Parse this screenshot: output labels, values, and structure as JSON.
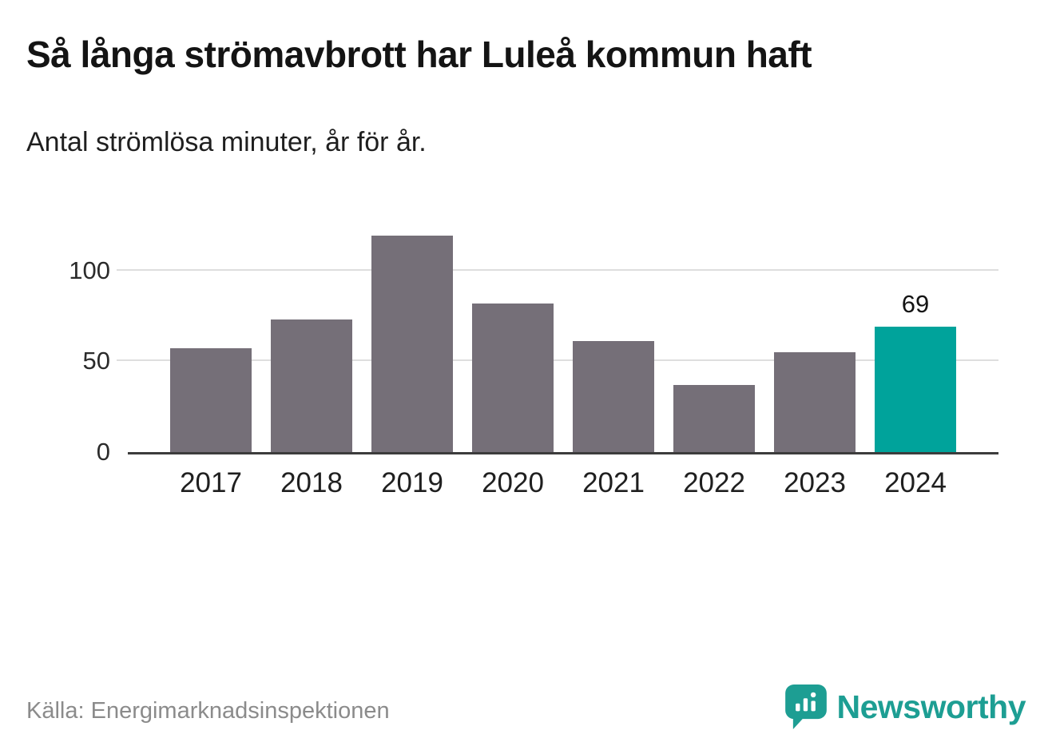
{
  "title": "Så långa strömavbrott har Luleå kommun haft",
  "subtitle": "Antal strömlösa minuter, år för år.",
  "source": "Källa: Energimarknadsinspektionen",
  "brand": {
    "name": "Newsworthy",
    "icon": "bar-chart-bubble-icon",
    "color": "#1d9e93"
  },
  "chart_data": {
    "type": "bar",
    "title": "Så långa strömavbrott har Luleå kommun haft",
    "subtitle": "Antal strömlösa minuter, år för år.",
    "categories": [
      "2017",
      "2018",
      "2019",
      "2020",
      "2021",
      "2022",
      "2023",
      "2024"
    ],
    "values": [
      57,
      73,
      119,
      82,
      61,
      37,
      55,
      69
    ],
    "highlight_category": "2024",
    "value_labels": {
      "2024": "69"
    },
    "bar_color": "#756f78",
    "highlight_color": "#00a39b",
    "yticks": [
      0,
      50,
      100
    ],
    "ylim": [
      0,
      124
    ],
    "grid": true,
    "xlabel": "",
    "ylabel": "Antal strömlösa minuter"
  }
}
